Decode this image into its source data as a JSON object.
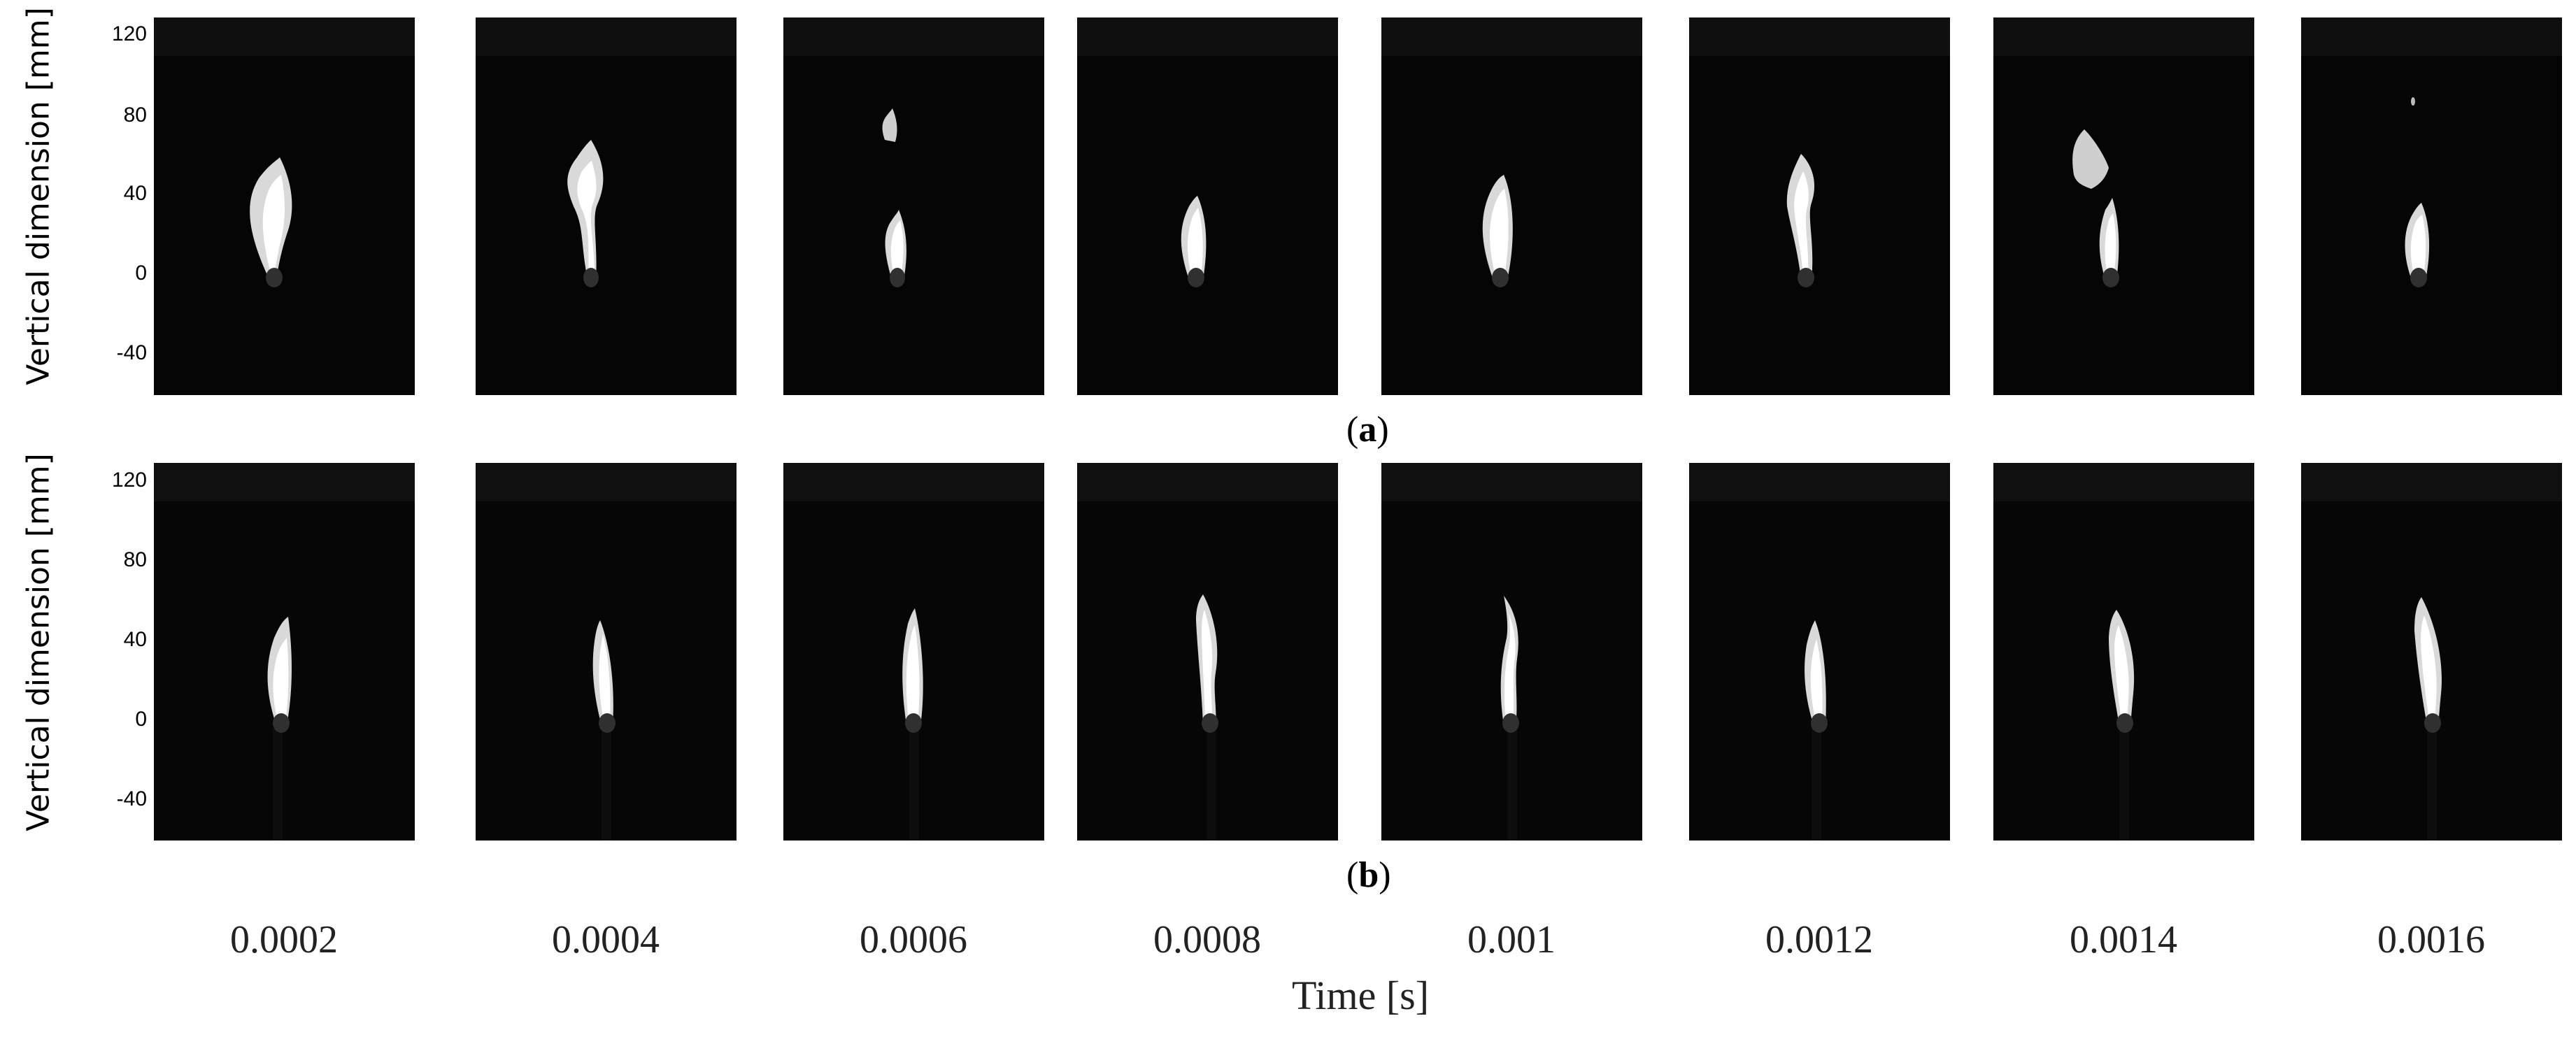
{
  "rows": [
    {
      "id": "a",
      "panel_label": "a",
      "y_axis_label": "Vertical dimension [mm]",
      "y_ticks": [
        "120",
        "80",
        "40",
        "0",
        "-40"
      ]
    },
    {
      "id": "b",
      "panel_label": "b",
      "y_axis_label": "Vertical dimension  [mm]",
      "y_ticks": [
        "120",
        "80",
        "40",
        "0",
        "-40"
      ]
    }
  ],
  "x_axis": {
    "title": "Time [s]",
    "times": [
      "0.0002",
      "0.0004",
      "0.0006",
      "0.0008",
      "0.001",
      "0.0012",
      "0.0014",
      "0.0016"
    ]
  }
}
